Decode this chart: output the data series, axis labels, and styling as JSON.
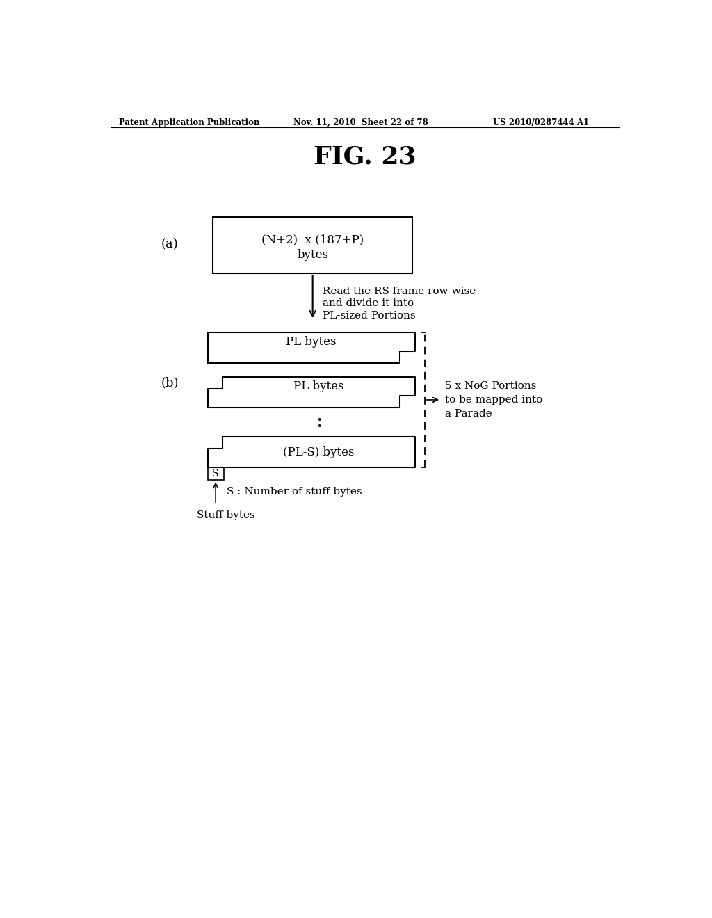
{
  "header_left": "Patent Application Publication",
  "header_mid": "Nov. 11, 2010  Sheet 22 of 78",
  "header_right": "US 2010/0287444 A1",
  "fig_title": "FIG. 23",
  "label_a": "(a)",
  "label_b": "(b)",
  "box_a_text1": "(N+2)  x (187+P)",
  "box_a_text2": "bytes",
  "arrow_text1": "Read the RS frame row-wise",
  "arrow_text2": "and divide it into",
  "arrow_text3": "PL-sized Portions",
  "box_b1_text": "PL bytes",
  "box_b2_text": "PL bytes",
  "box_b3_text": "(PL-S) bytes",
  "box_s_text": "S",
  "brace_text1": "5 x NoG Portions",
  "brace_text2": "to be mapped into",
  "brace_text3": "a Parade",
  "arrow_s_text": "S : Number of stuff bytes",
  "stuff_text": "Stuff bytes",
  "bg_color": "#ffffff",
  "text_color": "#000000"
}
